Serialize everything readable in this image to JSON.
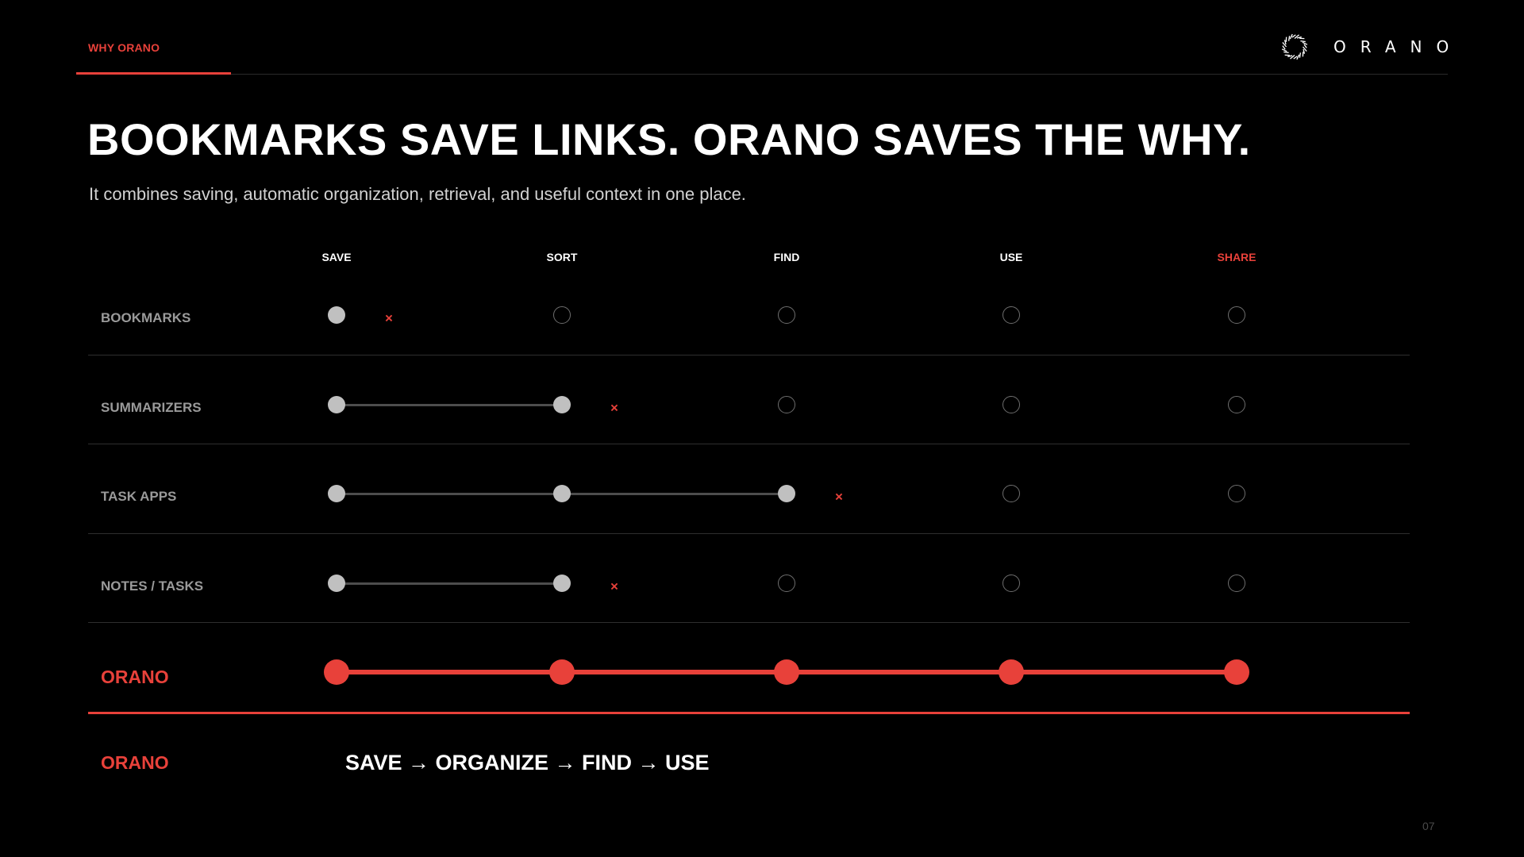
{
  "header": {
    "section_label": "WHY ORANO",
    "logo_icon": "orano-ring-logo-icon",
    "logo_text": "ORANO"
  },
  "title": "BOOKMARKS SAVE LINKS. ORANO SAVES THE WHY.",
  "subtitle": "It combines saving, automatic organization, retrieval, and useful context in one place.",
  "columns": [
    "SAVE",
    "SORT",
    "FIND",
    "USE",
    "SHARE"
  ],
  "highlight_column": 4,
  "rows": [
    {
      "label": "BOOKMARKS",
      "filled_steps": 1,
      "brand": false
    },
    {
      "label": "SUMMARIZERS",
      "filled_steps": 2,
      "brand": false
    },
    {
      "label": "TASK APPS",
      "filled_steps": 3,
      "brand": false
    },
    {
      "label": "NOTES / TASKS",
      "filled_steps": 2,
      "brand": false
    },
    {
      "label": "ORANO",
      "filled_steps": 5,
      "brand": true
    }
  ],
  "stop_marker": "×",
  "flow": {
    "label": "ORANO",
    "text": "SAVE → ORGANIZE → FIND → USE"
  },
  "page_number": "07",
  "colors": {
    "accent": "#e8413a",
    "background": "#000000",
    "filled_dot": "#c0c0c0",
    "empty_dot_border": "#6e6e6e",
    "row_label": "#9a9a9a"
  }
}
